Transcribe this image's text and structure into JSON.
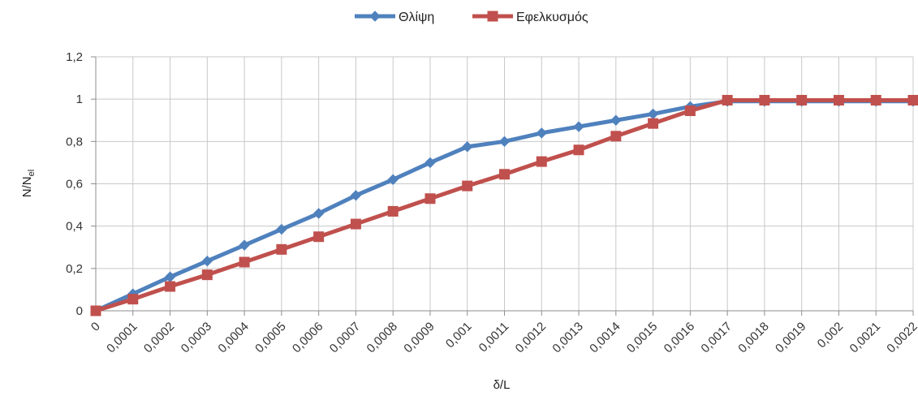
{
  "chart_data": {
    "type": "line",
    "title": "",
    "xlabel": "δ/L",
    "ylabel": "N/N",
    "ylabel_sub": "el",
    "categories": [
      "0",
      "0,0001",
      "0,0002",
      "0,0003",
      "0,0004",
      "0,0005",
      "0,0006",
      "0,0007",
      "0,0008",
      "0,0009",
      "0,001",
      "0,0011",
      "0,0012",
      "0,0013",
      "0,0014",
      "0,0015",
      "0,0016",
      "0,0017",
      "0,0018",
      "0,0019",
      "0,002",
      "0,0021",
      "0,0022"
    ],
    "y_ticks": [
      "0",
      "0,2",
      "0,4",
      "0,6",
      "0,8",
      "1",
      "1,2"
    ],
    "ylim": [
      0,
      1.2
    ],
    "grid": true,
    "legend_position": "top-center",
    "series": [
      {
        "name": "Θλίψη",
        "color": "#4f81bd",
        "marker": "diamond",
        "values": [
          0,
          0.08,
          0.16,
          0.235,
          0.31,
          0.385,
          0.46,
          0.545,
          0.62,
          0.7,
          0.775,
          0.8,
          0.84,
          0.87,
          0.9,
          0.93,
          0.965,
          0.99,
          0.99,
          0.99,
          0.99,
          0.99,
          0.99
        ]
      },
      {
        "name": "Εφελκυσμός",
        "color": "#c0504d",
        "marker": "square",
        "values": [
          0,
          0.055,
          0.115,
          0.17,
          0.23,
          0.29,
          0.35,
          0.41,
          0.47,
          0.53,
          0.59,
          0.645,
          0.705,
          0.76,
          0.825,
          0.885,
          0.945,
          0.995,
          0.995,
          0.995,
          0.995,
          0.995,
          0.995
        ]
      }
    ]
  }
}
